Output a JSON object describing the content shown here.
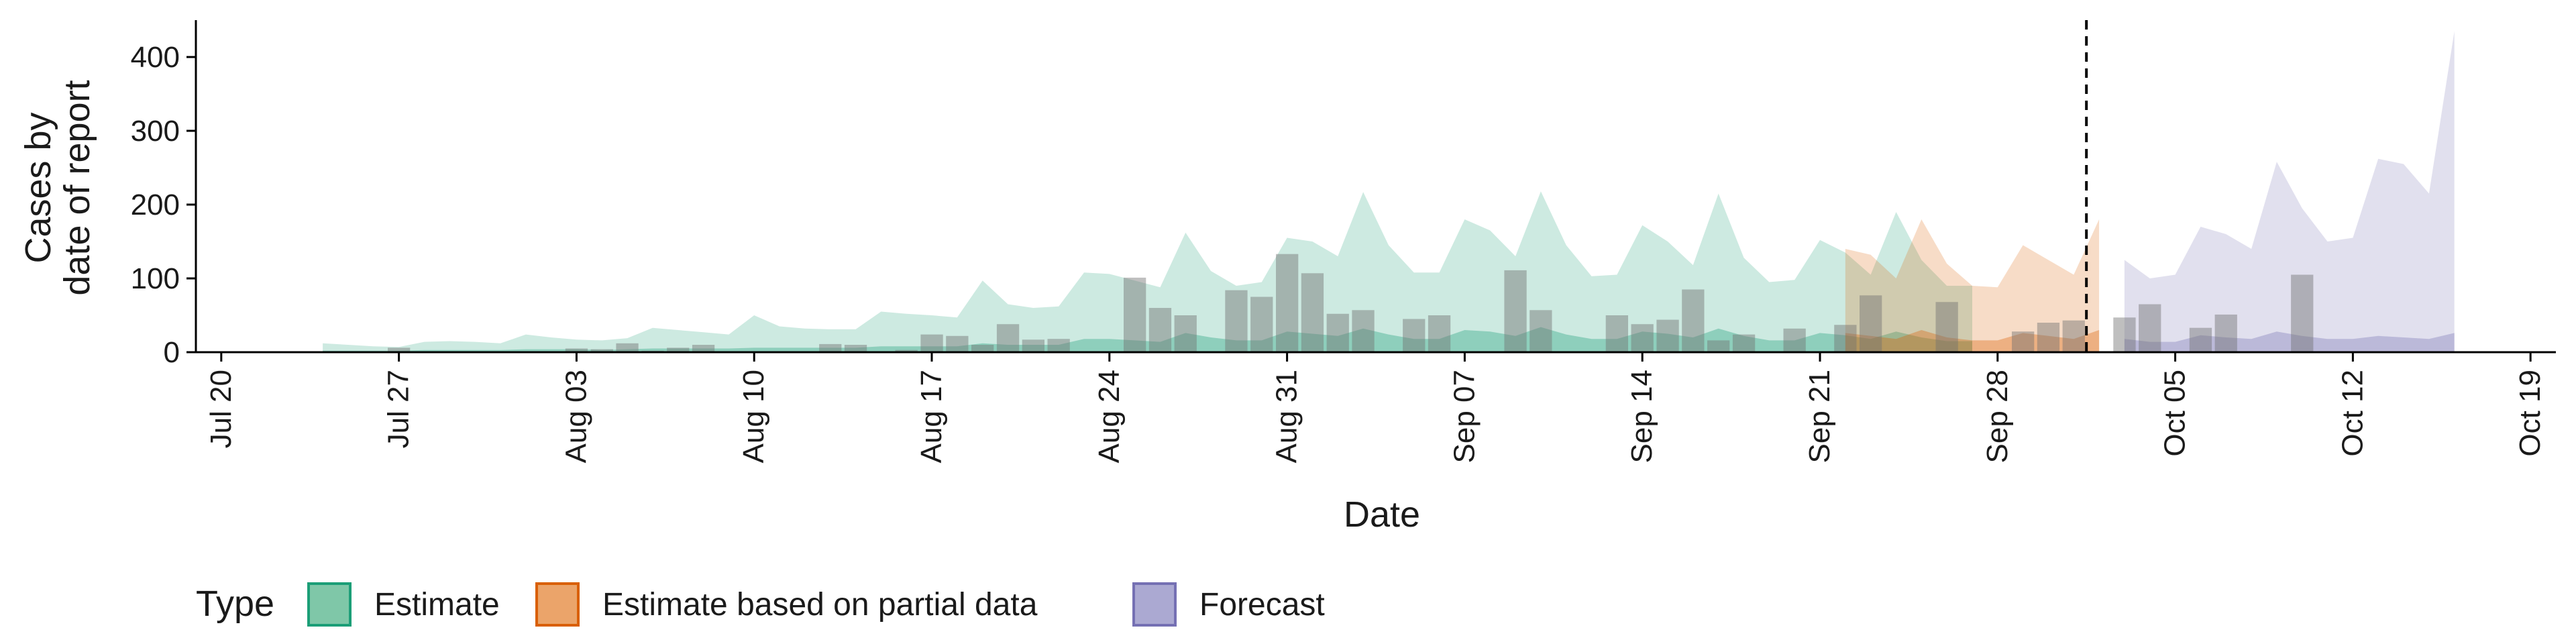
{
  "chart_data": {
    "type": "area",
    "ylabel_lines": [
      "Cases by",
      "date of report"
    ],
    "xlabel": "Date",
    "ylim": [
      0,
      450
    ],
    "yticks": [
      0,
      100,
      200,
      300,
      400
    ],
    "xlim": [
      "2020-07-19",
      "2020-10-20"
    ],
    "xticks": [
      {
        "date": "2020-07-20",
        "label": "Jul 20"
      },
      {
        "date": "2020-07-27",
        "label": "Jul 27"
      },
      {
        "date": "2020-08-03",
        "label": "Aug 03"
      },
      {
        "date": "2020-08-10",
        "label": "Aug 10"
      },
      {
        "date": "2020-08-17",
        "label": "Aug 17"
      },
      {
        "date": "2020-08-24",
        "label": "Aug 24"
      },
      {
        "date": "2020-08-31",
        "label": "Aug 31"
      },
      {
        "date": "2020-09-07",
        "label": "Sep 07"
      },
      {
        "date": "2020-09-14",
        "label": "Sep 14"
      },
      {
        "date": "2020-09-21",
        "label": "Sep 21"
      },
      {
        "date": "2020-09-28",
        "label": "Sep 28"
      },
      {
        "date": "2020-10-05",
        "label": "Oct 05"
      },
      {
        "date": "2020-10-12",
        "label": "Oct 12"
      },
      {
        "date": "2020-10-19",
        "label": "Oct 19"
      }
    ],
    "forecast_date": "2020-10-02",
    "legend": {
      "title": "Type",
      "position": "bottom",
      "items": [
        {
          "label": "Estimate",
          "fill": "#7fc7a8",
          "stroke": "#1b9e77"
        },
        {
          "label": "Estimate based on partial data",
          "fill": "#eba46a",
          "stroke": "#d95f02"
        },
        {
          "label": "Forecast",
          "fill": "#aba9d2",
          "stroke": "#7570b3"
        }
      ]
    },
    "colors": {
      "estimate": "#1b9e77",
      "partial": "#d95f02",
      "forecast": "#7570b3",
      "bars": "#707070",
      "axis": "#000000"
    },
    "series": [
      {
        "name": "Estimate",
        "start": "2020-07-24",
        "upper": [
          12,
          10,
          8,
          7,
          14,
          15,
          14,
          12,
          24,
          20,
          17,
          16,
          19,
          33,
          30,
          27,
          24,
          50,
          35,
          32,
          31,
          31,
          55,
          52,
          50,
          47,
          97,
          65,
          60,
          62,
          108,
          106,
          97,
          88,
          162,
          110,
          90,
          95,
          155,
          150,
          130,
          217,
          145,
          108,
          108,
          180,
          165,
          130,
          218,
          145,
          103,
          105,
          172,
          150,
          118,
          215,
          128,
          95,
          98,
          152,
          135,
          105,
          190,
          125,
          90,
          90
        ],
        "lower": [
          2,
          2,
          2,
          2,
          3,
          3,
          3,
          3,
          4,
          4,
          4,
          3,
          4,
          5,
          5,
          5,
          5,
          6,
          6,
          6,
          6,
          6,
          8,
          8,
          8,
          8,
          12,
          10,
          10,
          10,
          18,
          18,
          16,
          14,
          26,
          20,
          16,
          16,
          28,
          25,
          22,
          32,
          24,
          18,
          18,
          30,
          28,
          22,
          34,
          24,
          18,
          18,
          28,
          25,
          20,
          32,
          22,
          16,
          16,
          26,
          23,
          18,
          28,
          20,
          15,
          15
        ]
      },
      {
        "name": "Estimate based on partial data",
        "start": "2020-09-22",
        "upper": [
          140,
          132,
          100,
          180,
          120,
          90,
          88,
          145,
          125,
          105,
          180
        ],
        "lower": [
          26,
          22,
          18,
          30,
          20,
          16,
          16,
          26,
          22,
          18,
          30
        ]
      },
      {
        "name": "Forecast",
        "start": "2020-10-03",
        "upper": [
          125,
          100,
          105,
          170,
          160,
          140,
          258,
          195,
          150,
          155,
          262,
          255,
          215,
          435
        ],
        "lower": [
          18,
          14,
          14,
          23,
          20,
          18,
          28,
          22,
          18,
          18,
          22,
          20,
          18,
          26
        ]
      }
    ],
    "bars": {
      "start": "2020-07-24",
      "values": [
        0,
        0,
        0,
        6,
        0,
        0,
        0,
        0,
        0,
        0,
        5,
        4,
        12,
        2,
        6,
        10,
        1,
        0,
        0,
        0,
        11,
        10,
        0,
        3,
        24,
        22,
        10,
        38,
        17,
        18,
        0,
        0,
        101,
        60,
        50,
        0,
        84,
        75,
        133,
        107,
        52,
        57,
        0,
        45,
        50,
        0,
        0,
        111,
        57,
        0,
        0,
        50,
        38,
        44,
        85,
        16,
        24,
        0,
        32,
        0,
        37,
        77,
        0,
        0,
        68,
        0,
        0,
        28,
        40,
        43,
        0,
        47,
        65,
        0,
        33,
        51,
        0,
        0,
        105
      ]
    }
  }
}
